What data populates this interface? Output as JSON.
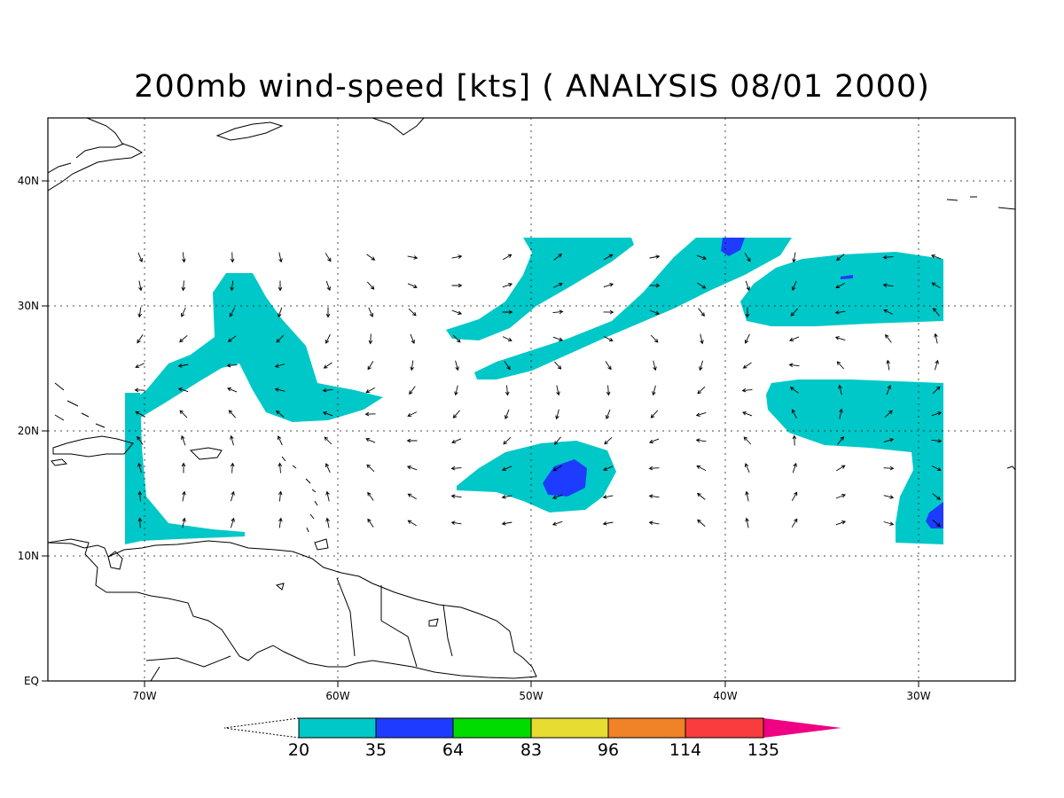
{
  "title": "200mb wind-speed [kts] ( ANALYSIS 08/01 2000)",
  "map": {
    "lon_range": [
      -75,
      -25
    ],
    "lat_range": [
      0,
      45
    ],
    "x_ticks": [
      {
        "lon": -70,
        "label": "70W"
      },
      {
        "lon": -60,
        "label": "60W"
      },
      {
        "lon": -50,
        "label": "50W"
      },
      {
        "lon": -40,
        "label": "40W"
      },
      {
        "lon": -30,
        "label": "30W"
      }
    ],
    "y_ticks": [
      {
        "lat": 0,
        "label": "EQ"
      },
      {
        "lat": 10,
        "label": "10N"
      },
      {
        "lat": 20,
        "label": "20N"
      },
      {
        "lat": 30,
        "label": "30N"
      },
      {
        "lat": 40,
        "label": "40N"
      }
    ],
    "grid": "dotted",
    "fill_colors": {
      "low": "#00c8c8",
      "mid": "#1e3cff"
    }
  },
  "colorbar": {
    "levels": [
      "20",
      "35",
      "64",
      "83",
      "96",
      "114",
      "135"
    ],
    "colors": [
      "#00c8c8",
      "#1e3cff",
      "#00dc00",
      "#e6dc32",
      "#f08228",
      "#fa3c3c",
      "#f00082"
    ]
  }
}
